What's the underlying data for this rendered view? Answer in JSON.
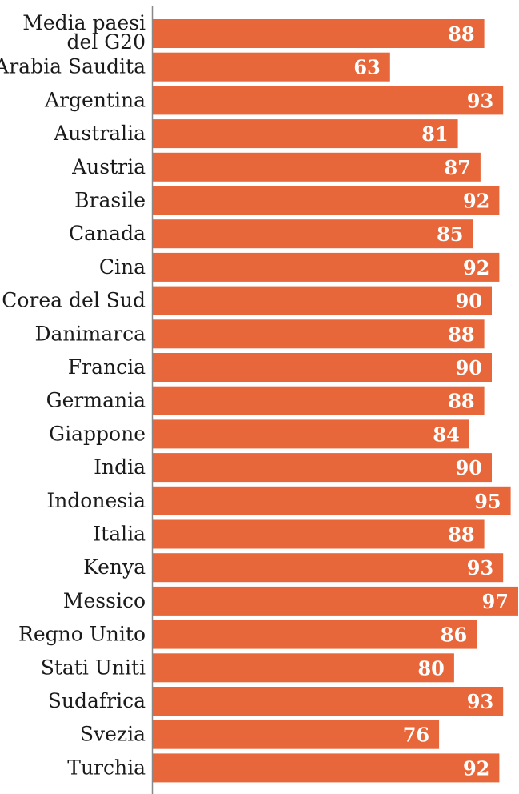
{
  "chart_data": {
    "type": "bar",
    "orientation": "horizontal",
    "title": "",
    "xlabel": "",
    "ylabel": "",
    "xlim": [
      0,
      97
    ],
    "grid": false,
    "bar_color": "#e8673a",
    "label_color": "#ffffff",
    "categories": [
      [
        "Media paesi",
        "del G20"
      ],
      [
        "Arabia Saudita"
      ],
      [
        "Argentina"
      ],
      [
        "Australia"
      ],
      [
        "Austria"
      ],
      [
        "Brasile"
      ],
      [
        "Canada"
      ],
      [
        "Cina"
      ],
      [
        "Corea del Sud"
      ],
      [
        "Danimarca"
      ],
      [
        "Francia"
      ],
      [
        "Germania"
      ],
      [
        "Giappone"
      ],
      [
        "India"
      ],
      [
        "Indonesia"
      ],
      [
        "Italia"
      ],
      [
        "Kenya"
      ],
      [
        "Messico"
      ],
      [
        "Regno Unito"
      ],
      [
        "Stati Uniti"
      ],
      [
        "Sudafrica"
      ],
      [
        "Svezia"
      ],
      [
        "Turchia"
      ]
    ],
    "values": [
      88,
      63,
      93,
      81,
      87,
      92,
      85,
      92,
      90,
      88,
      90,
      88,
      84,
      90,
      95,
      88,
      93,
      97,
      86,
      80,
      93,
      76,
      92
    ]
  }
}
